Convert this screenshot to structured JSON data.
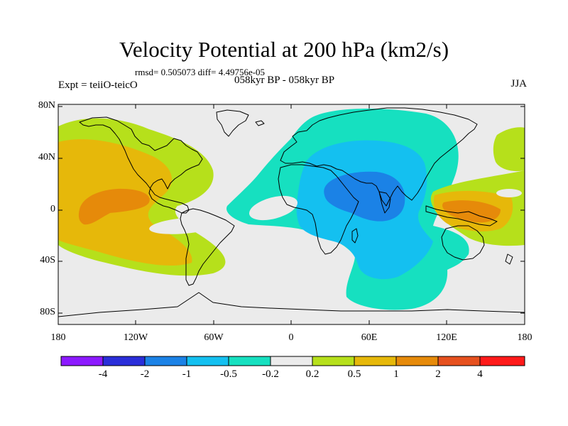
{
  "title": "Velocity Potential at 200 hPa (km2/s)",
  "stats_line": "rmsd= 0.505073 diff= 4.49756e-05",
  "left_label": "Expt = teiiO-teicO",
  "center_label": "058kyr BP - 058kyr BP",
  "right_label": "JJA",
  "lat_ticks": [
    "80N",
    "40N",
    "0",
    "40S",
    "80S"
  ],
  "lon_ticks": [
    "180",
    "120W",
    "60W",
    "0",
    "60E",
    "120E",
    "180"
  ],
  "colorbar": {
    "colors": [
      "#8c19ff",
      "#2a2ed9",
      "#1b82e6",
      "#14c0f0",
      "#16e0c0",
      "#ebebeb",
      "#b6e01b",
      "#e6b80a",
      "#e68a0a",
      "#e6501e",
      "#ff1a1a"
    ],
    "labels": [
      "-4",
      "-2",
      "-1",
      "-0.5",
      "-0.2",
      "0.2",
      "0.5",
      "1",
      "2",
      "4"
    ]
  }
}
